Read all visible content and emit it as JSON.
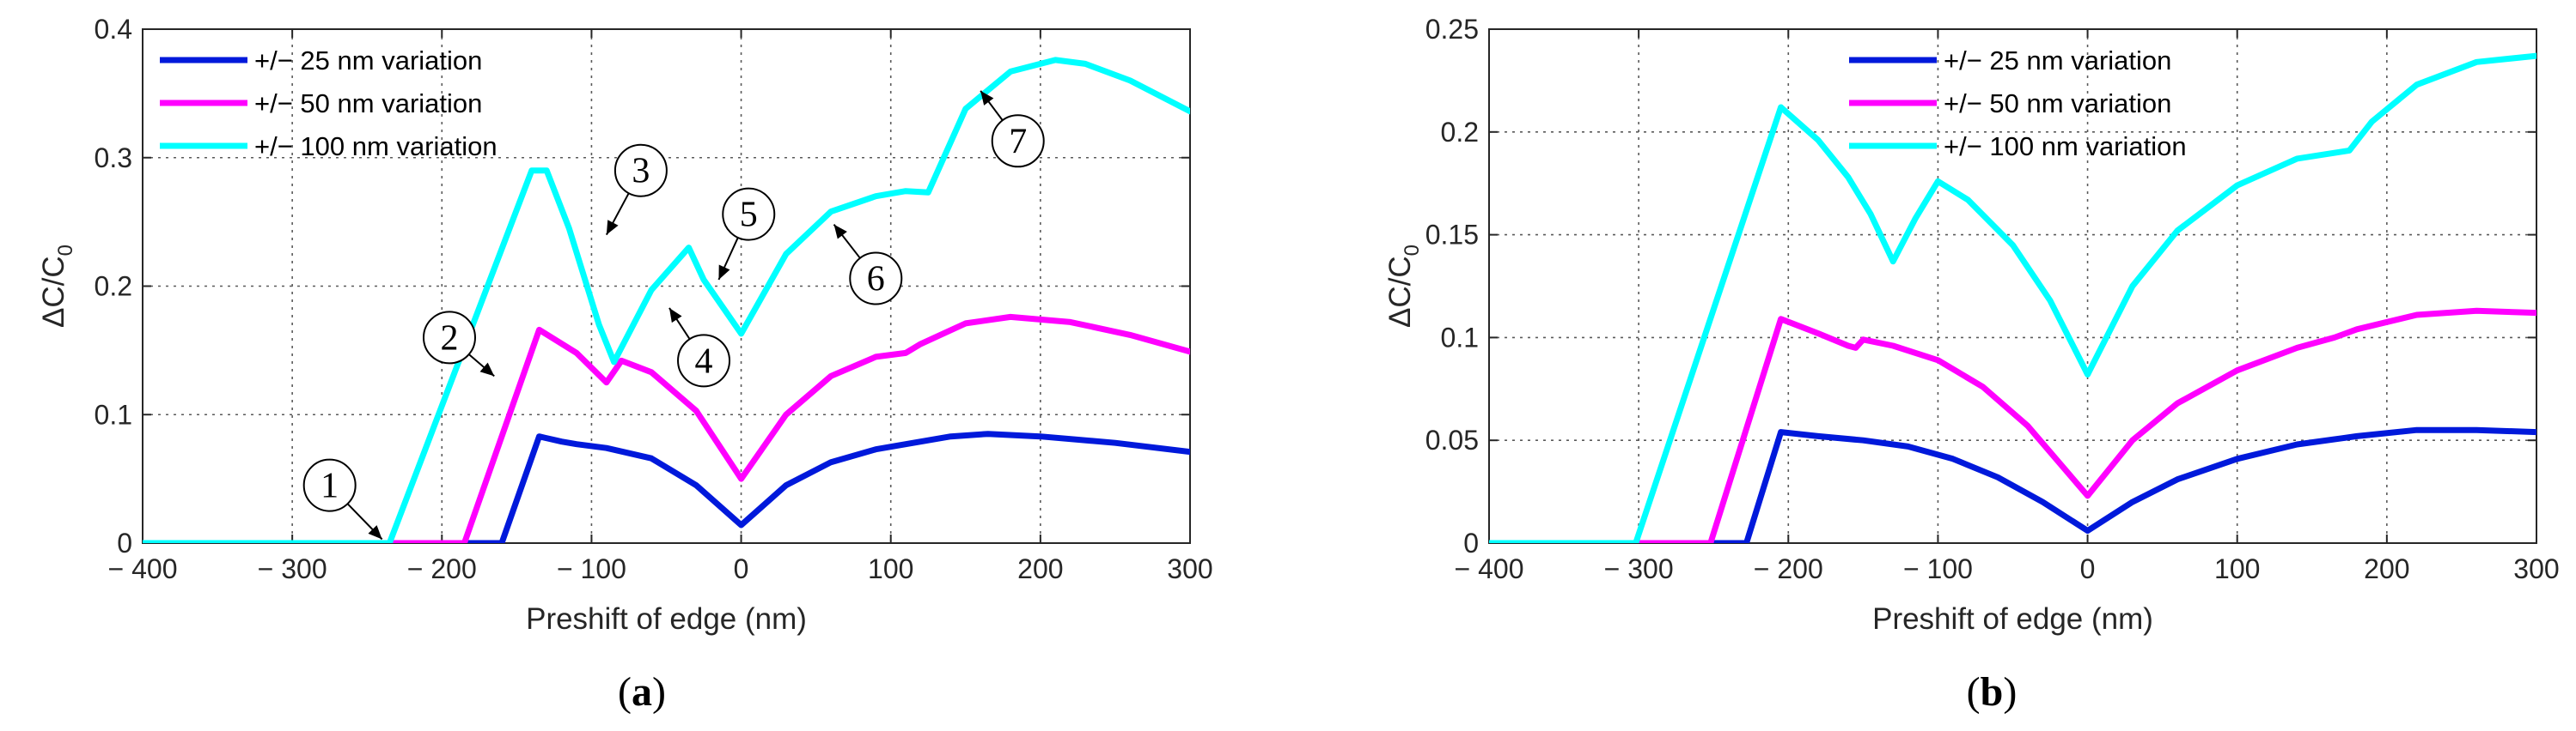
{
  "chart_data": [
    {
      "type": "line",
      "panel_label": "a",
      "xlabel": "Preshift of edge (nm)",
      "ylabel": "ΔC/C0",
      "ylabel_main": "ΔC/C",
      "ylabel_sub": "0",
      "xlim": [
        -400,
        300
      ],
      "ylim": [
        0,
        0.4
      ],
      "xticks": [
        -400,
        -300,
        -200,
        -100,
        0,
        100,
        200,
        300
      ],
      "xtick_labels": [
        "− 400",
        "− 300",
        "− 200",
        "− 100",
        "0",
        "100",
        "200",
        "300"
      ],
      "yticks": [
        0,
        0.1,
        0.2,
        0.3,
        0.4
      ],
      "ytick_labels": [
        "0",
        "0.1",
        "0.2",
        "0.3",
        "0.4"
      ],
      "grid": true,
      "legend_position": "top-left",
      "series": [
        {
          "name": "+/− 25 nm variation",
          "color": "#0019db",
          "x": [
            -400,
            -160,
            -135,
            -120,
            -110,
            -90,
            -60,
            -30,
            0,
            30,
            60,
            90,
            105,
            115,
            140,
            165,
            200,
            250,
            300
          ],
          "y": [
            0,
            0,
            0.083,
            0.079,
            0.077,
            0.074,
            0.066,
            0.045,
            0.014,
            0.045,
            0.063,
            0.073,
            0.076,
            0.078,
            0.083,
            0.085,
            0.083,
            0.078,
            0.071
          ]
        },
        {
          "name": "+/− 50 nm variation",
          "color": "#ff00ff",
          "x": [
            -400,
            -185,
            -135,
            -110,
            -90,
            -80,
            -60,
            -30,
            0,
            30,
            60,
            90,
            110,
            120,
            150,
            180,
            220,
            260,
            300
          ],
          "y": [
            0,
            0,
            0.166,
            0.148,
            0.125,
            0.142,
            0.133,
            0.103,
            0.05,
            0.1,
            0.13,
            0.145,
            0.148,
            0.155,
            0.171,
            0.176,
            0.172,
            0.162,
            0.149
          ]
        },
        {
          "name": "+/− 100 nm variation",
          "color": "#00ffff",
          "x": [
            -400,
            -235,
            -140,
            -130,
            -115,
            -95,
            -85,
            -60,
            -35,
            -25,
            0,
            30,
            60,
            90,
            110,
            125,
            150,
            180,
            210,
            230,
            260,
            300
          ],
          "y": [
            0,
            0,
            0.29,
            0.29,
            0.245,
            0.17,
            0.141,
            0.197,
            0.23,
            0.205,
            0.163,
            0.225,
            0.258,
            0.27,
            0.274,
            0.273,
            0.338,
            0.367,
            0.376,
            0.373,
            0.36,
            0.336
          ]
        }
      ],
      "annotations": [
        {
          "label": "1",
          "text_at": [
            -275,
            0.045
          ],
          "point_to": [
            -240,
            0.003
          ]
        },
        {
          "label": "2",
          "text_at": [
            -195,
            0.16
          ],
          "point_to": [
            -165,
            0.13
          ]
        },
        {
          "label": "3",
          "text_at": [
            -67,
            0.29
          ],
          "point_to": [
            -90,
            0.24
          ]
        },
        {
          "label": "4",
          "text_at": [
            -25,
            0.142
          ],
          "point_to": [
            -48,
            0.183
          ]
        },
        {
          "label": "5",
          "text_at": [
            5,
            0.256
          ],
          "point_to": [
            -15,
            0.205
          ]
        },
        {
          "label": "6",
          "text_at": [
            90,
            0.206
          ],
          "point_to": [
            62,
            0.248
          ]
        },
        {
          "label": "7",
          "text_at": [
            185,
            0.313
          ],
          "point_to": [
            160,
            0.352
          ]
        }
      ]
    },
    {
      "type": "line",
      "panel_label": "b",
      "xlabel": "Preshift of edge (nm)",
      "ylabel": "ΔC/C0",
      "ylabel_main": "ΔC/C",
      "ylabel_sub": "0",
      "xlim": [
        -400,
        300
      ],
      "ylim": [
        0,
        0.25
      ],
      "xticks": [
        -400,
        -300,
        -200,
        -100,
        0,
        100,
        200,
        300
      ],
      "xtick_labels": [
        "− 400",
        "− 300",
        "− 200",
        "− 100",
        "0",
        "100",
        "200",
        "300"
      ],
      "yticks": [
        0,
        0.05,
        0.1,
        0.15,
        0.2,
        0.25
      ],
      "ytick_labels": [
        "0",
        "0.05",
        "0.1",
        "0.15",
        "0.2",
        "0.25"
      ],
      "grid": true,
      "legend_position": "top-center",
      "series": [
        {
          "name": "+/− 25 nm variation",
          "color": "#0019db",
          "x": [
            -400,
            -228,
            -205,
            -180,
            -150,
            -120,
            -90,
            -60,
            -30,
            0,
            30,
            60,
            100,
            140,
            170,
            180,
            220,
            260,
            300
          ],
          "y": [
            0,
            0,
            0.054,
            0.052,
            0.05,
            0.047,
            0.041,
            0.032,
            0.02,
            0.006,
            0.02,
            0.031,
            0.041,
            0.048,
            0.051,
            0.052,
            0.055,
            0.055,
            0.054
          ]
        },
        {
          "name": "+/− 50 nm variation",
          "color": "#ff00ff",
          "x": [
            -400,
            -252,
            -205,
            -180,
            -160,
            -155,
            -150,
            -130,
            -100,
            -70,
            -40,
            0,
            30,
            60,
            100,
            140,
            165,
            180,
            220,
            260,
            300
          ],
          "y": [
            0,
            0,
            0.109,
            0.102,
            0.096,
            0.095,
            0.099,
            0.096,
            0.089,
            0.076,
            0.057,
            0.023,
            0.05,
            0.068,
            0.084,
            0.095,
            0.1,
            0.104,
            0.111,
            0.113,
            0.112
          ]
        },
        {
          "name": "+/− 100 nm variation",
          "color": "#00ffff",
          "x": [
            -400,
            -302,
            -205,
            -180,
            -160,
            -145,
            -130,
            -115,
            -100,
            -80,
            -50,
            -25,
            0,
            30,
            60,
            100,
            140,
            175,
            190,
            220,
            260,
            300
          ],
          "y": [
            0,
            0,
            0.212,
            0.196,
            0.178,
            0.16,
            0.137,
            0.158,
            0.176,
            0.167,
            0.145,
            0.118,
            0.082,
            0.125,
            0.152,
            0.174,
            0.187,
            0.191,
            0.205,
            0.223,
            0.234,
            0.237
          ]
        }
      ],
      "annotations": []
    }
  ]
}
